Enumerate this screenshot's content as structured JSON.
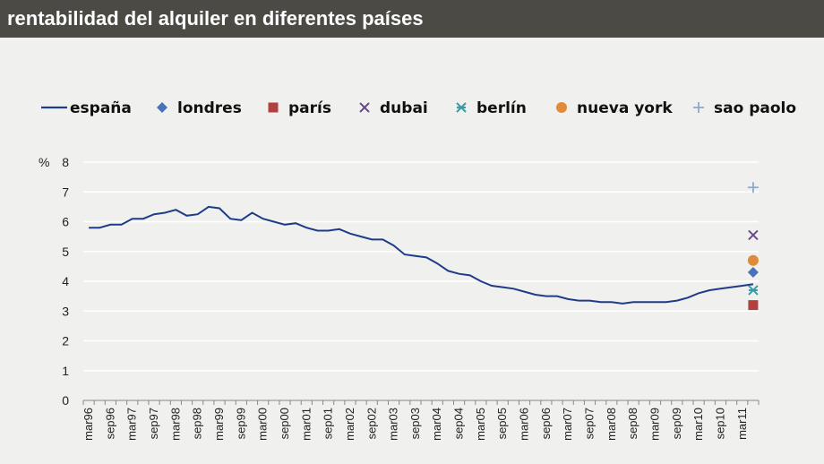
{
  "chart_data": {
    "type": "line",
    "title": "rentabilidad del alquiler en diferentes países",
    "ylabel": "%",
    "ylim": [
      0,
      8
    ],
    "yticks": [
      "0",
      "1",
      "2",
      "3",
      "4",
      "5",
      "6",
      "7",
      "8"
    ],
    "grid": true,
    "legend_position": "top",
    "xticks": [
      "mar96",
      "sep96",
      "mar97",
      "sep97",
      "mar98",
      "sep98",
      "mar99",
      "sep99",
      "mar00",
      "sep00",
      "mar01",
      "sep01",
      "mar02",
      "sep02",
      "mar03",
      "sep03",
      "mar04",
      "sep04",
      "mar05",
      "sep05",
      "mar06",
      "sep06",
      "mar07",
      "sep07",
      "mar08",
      "sep08",
      "mar09",
      "sep09",
      "mar10",
      "sep10",
      "mar11"
    ],
    "series": [
      {
        "name": "españa",
        "kind": "line",
        "color": "#1f3c88",
        "values": [
          5.8,
          5.8,
          5.9,
          5.9,
          6.1,
          6.1,
          6.25,
          6.3,
          6.4,
          6.2,
          6.25,
          6.5,
          6.45,
          6.1,
          6.05,
          6.3,
          6.1,
          6.0,
          5.9,
          5.95,
          5.8,
          5.7,
          5.7,
          5.75,
          5.6,
          5.5,
          5.4,
          5.4,
          5.2,
          4.9,
          4.85,
          4.8,
          4.6,
          4.35,
          4.25,
          4.2,
          4.0,
          3.85,
          3.8,
          3.75,
          3.65,
          3.55,
          3.5,
          3.5,
          3.4,
          3.35,
          3.35,
          3.3,
          3.3,
          3.25,
          3.3,
          3.3,
          3.3,
          3.3,
          3.35,
          3.45,
          3.6,
          3.7,
          3.75,
          3.8,
          3.85,
          3.9
        ]
      },
      {
        "name": "londres",
        "kind": "marker",
        "marker": "diamond",
        "color": "#4a72b8",
        "value": 4.3
      },
      {
        "name": "parís",
        "kind": "marker",
        "marker": "square",
        "color": "#b0413e",
        "value": 3.2
      },
      {
        "name": "dubai",
        "kind": "marker",
        "marker": "x",
        "color": "#6a4a8c",
        "value": 5.55
      },
      {
        "name": "berlín",
        "kind": "marker",
        "marker": "star",
        "color": "#3a9aa6",
        "value": 3.7
      },
      {
        "name": "nueva york",
        "kind": "marker",
        "marker": "circle",
        "color": "#e08a3a",
        "value": 4.7
      },
      {
        "name": "sao paolo",
        "kind": "marker",
        "marker": "plus",
        "color": "#8fa8d0",
        "value": 7.15
      }
    ]
  }
}
